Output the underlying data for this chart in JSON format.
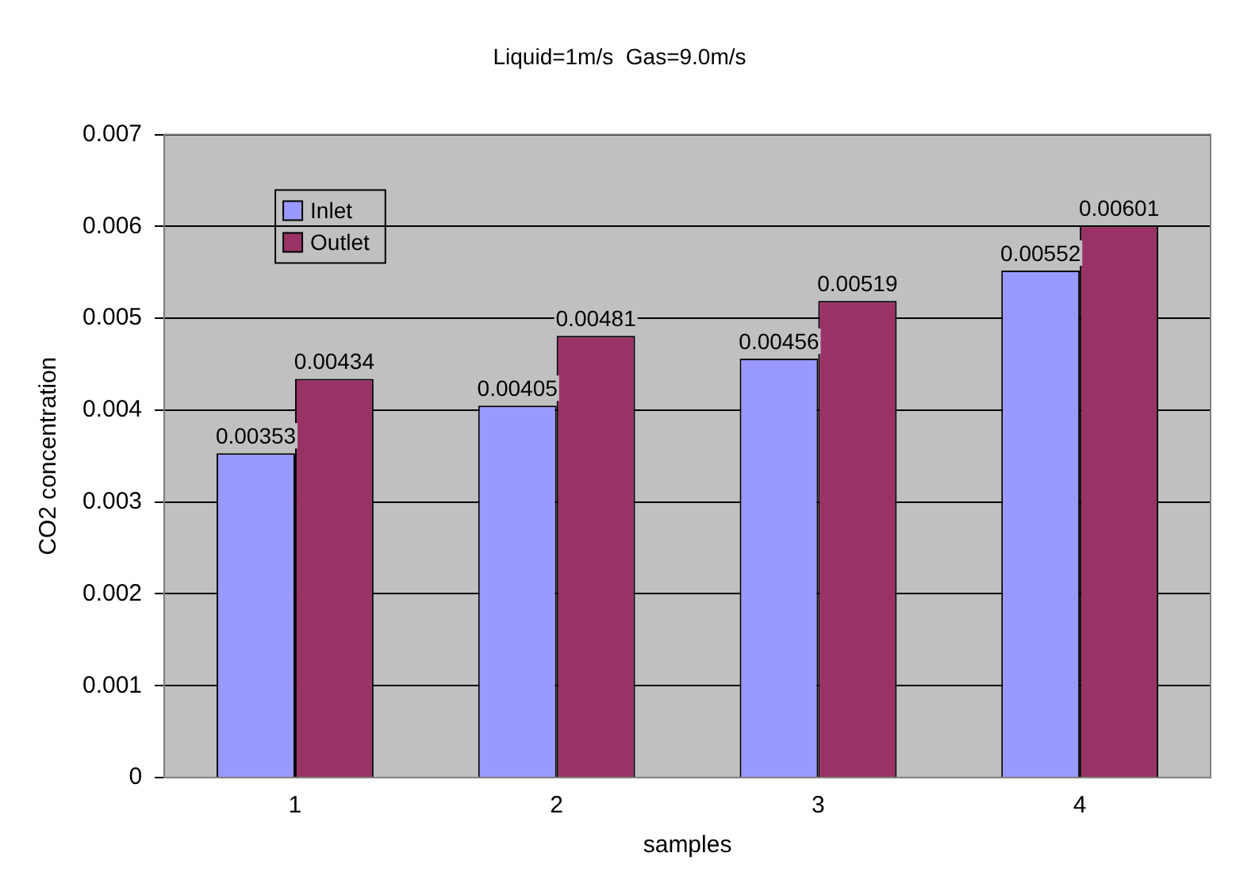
{
  "chart_data": {
    "type": "bar",
    "title": "Liquid=1m/s  Gas=9.0m/s",
    "xlabel": "samples",
    "ylabel": "CO2 concentration",
    "categories": [
      "1",
      "2",
      "3",
      "4"
    ],
    "series": [
      {
        "name": "Inlet",
        "color": "#9999ff",
        "values": [
          0.00353,
          0.00405,
          0.00456,
          0.00552
        ]
      },
      {
        "name": "Outlet",
        "color": "#993366",
        "values": [
          0.00434,
          0.00481,
          0.00519,
          0.00601
        ]
      }
    ],
    "ylim": [
      0,
      0.007
    ],
    "yticks": [
      0,
      0.001,
      0.002,
      0.003,
      0.004,
      0.005,
      0.006,
      0.007
    ],
    "grid": "y",
    "legend": "top left",
    "data_labels": true
  }
}
